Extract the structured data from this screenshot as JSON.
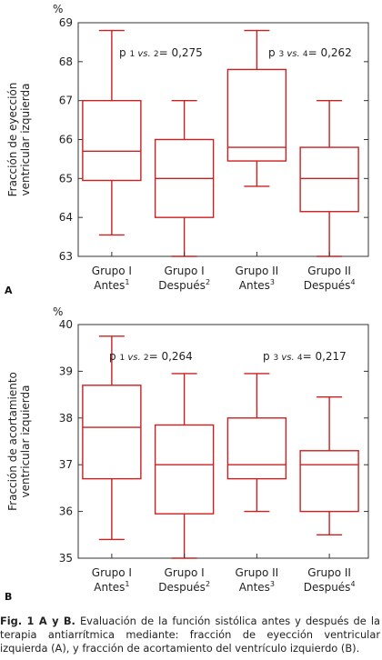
{
  "colors": {
    "box": "#cc2020",
    "axis": "#333333"
  },
  "chart_data": [
    {
      "type": "box",
      "panel_label": "A",
      "unit": "%",
      "ylabel": [
        "Fracción de eyección",
        "ventricular izquierda"
      ],
      "ylim": [
        63,
        69
      ],
      "yticks": [
        "63",
        "64",
        "65",
        "66",
        "67",
        "68",
        "69"
      ],
      "categories": [
        {
          "line1": "Grupo I",
          "line2": "Antes",
          "sup": "1"
        },
        {
          "line1": "Grupo I",
          "line2": "Después",
          "sup": "2"
        },
        {
          "line1": "Grupo II",
          "line2": "Antes",
          "sup": "3"
        },
        {
          "line1": "Grupo II",
          "line2": "Después",
          "sup": "4"
        }
      ],
      "boxes": [
        {
          "min": 63.55,
          "q1": 64.95,
          "median": 65.7,
          "q3": 67.0,
          "max": 68.8
        },
        {
          "min": 63.0,
          "q1": 64.0,
          "median": 65.0,
          "q3": 66.0,
          "max": 67.0
        },
        {
          "min": 64.8,
          "q1": 65.45,
          "median": 65.8,
          "q3": 67.8,
          "max": 68.8
        },
        {
          "min": 63.0,
          "q1": 64.15,
          "median": 65.0,
          "q3": 65.8,
          "max": 67.0
        }
      ],
      "annotations": [
        {
          "p": "p",
          "a": "1",
          "vs": "vs.",
          "b": "2",
          "value": "= 0,275"
        },
        {
          "p": "p",
          "a": "3",
          "vs": "vs.",
          "b": "4",
          "value": "= 0,262"
        }
      ]
    },
    {
      "type": "box",
      "panel_label": "B",
      "unit": "%",
      "ylabel": [
        "Fracción de acortamiento",
        "ventricular izquierda"
      ],
      "ylim": [
        35,
        40
      ],
      "yticks": [
        "35",
        "36",
        "37",
        "38",
        "39",
        "40"
      ],
      "categories": [
        {
          "line1": "Grupo I",
          "line2": "Antes",
          "sup": "1"
        },
        {
          "line1": "Grupo I",
          "line2": "Después",
          "sup": "2"
        },
        {
          "line1": "Grupo II",
          "line2": "Antes",
          "sup": "3"
        },
        {
          "line1": "Grupo II",
          "line2": "Después",
          "sup": "4"
        }
      ],
      "boxes": [
        {
          "min": 35.4,
          "q1": 36.7,
          "median": 37.8,
          "q3": 38.7,
          "max": 39.75
        },
        {
          "min": 35.0,
          "q1": 35.95,
          "median": 37.0,
          "q3": 37.85,
          "max": 38.95
        },
        {
          "min": 36.0,
          "q1": 36.7,
          "median": 37.0,
          "q3": 38.0,
          "max": 38.95
        },
        {
          "min": 35.5,
          "q1": 36.0,
          "median": 37.0,
          "q3": 37.3,
          "max": 38.45
        }
      ],
      "annotations": [
        {
          "p": "p",
          "a": "1",
          "vs": "vs.",
          "b": "2",
          "value": "= 0,264"
        },
        {
          "p": "p",
          "a": "3",
          "vs": "vs.",
          "b": "4",
          "value": "= 0,217"
        }
      ]
    }
  ],
  "caption": {
    "label": "Fig. 1 A y B.",
    "text": "Evaluación de la función sistólica antes y después de la terapia antiarrítmica mediante: fracción de eyección ventricular izquierda (A), y fracción de acortamiento del ventrículo izquierdo (B)."
  }
}
